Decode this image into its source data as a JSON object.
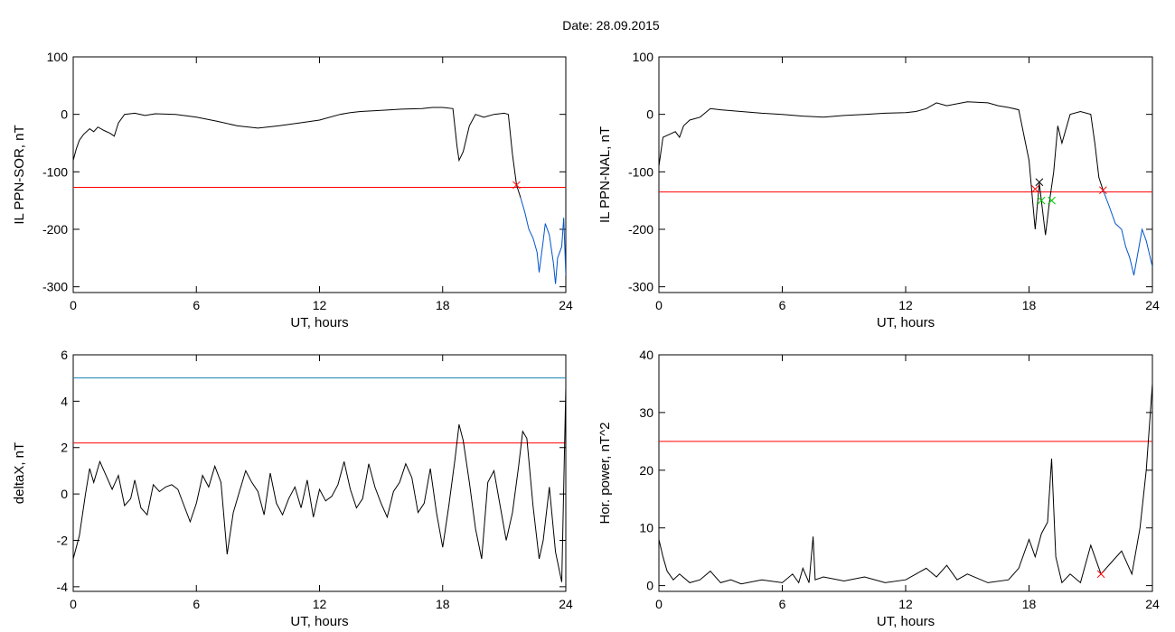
{
  "figure": {
    "title": "Date:  28.09.2015"
  },
  "chart_data": [
    {
      "id": "sor",
      "type": "line",
      "xlabel": "UT, hours",
      "ylabel": "IL PPN-SOR, nT",
      "xlim": [
        0,
        24
      ],
      "ylim": [
        -310,
        100
      ],
      "xticks": [
        0,
        6,
        12,
        18,
        24
      ],
      "yticks": [
        100,
        0,
        -100,
        -200,
        -300
      ],
      "threshold": {
        "value": -127,
        "color": "#ff0000"
      },
      "markers": [
        {
          "x": 21.6,
          "y": -123,
          "symbol": "x",
          "color": "#ff0000"
        }
      ],
      "series": [
        {
          "color": "#000000",
          "points": [
            [
              0,
              -80
            ],
            [
              0.15,
              -60
            ],
            [
              0.3,
              -45
            ],
            [
              0.5,
              -35
            ],
            [
              0.8,
              -25
            ],
            [
              1.0,
              -30
            ],
            [
              1.2,
              -22
            ],
            [
              1.5,
              -28
            ],
            [
              1.8,
              -33
            ],
            [
              2.0,
              -38
            ],
            [
              2.2,
              -15
            ],
            [
              2.5,
              0
            ],
            [
              3,
              2
            ],
            [
              3.5,
              -2
            ],
            [
              4,
              1
            ],
            [
              5,
              0
            ],
            [
              6,
              -5
            ],
            [
              7,
              -12
            ],
            [
              8,
              -20
            ],
            [
              9,
              -24
            ],
            [
              10,
              -20
            ],
            [
              11,
              -15
            ],
            [
              12,
              -10
            ],
            [
              13,
              0
            ],
            [
              13.5,
              3
            ],
            [
              14,
              5
            ],
            [
              15,
              7
            ],
            [
              16,
              9
            ],
            [
              17,
              10
            ],
            [
              17.5,
              12
            ],
            [
              18,
              12
            ],
            [
              18.5,
              10
            ],
            [
              18.7,
              -55
            ],
            [
              18.8,
              -80
            ],
            [
              19,
              -65
            ],
            [
              19.3,
              -20
            ],
            [
              19.6,
              0
            ],
            [
              20,
              -5
            ],
            [
              20.5,
              0
            ],
            [
              21,
              2
            ],
            [
              21.2,
              0
            ],
            [
              21.4,
              -70
            ],
            [
              21.6,
              -123
            ],
            [
              21.8,
              -145
            ]
          ]
        },
        {
          "color": "#0055cc",
          "points": [
            [
              21.8,
              -145
            ],
            [
              22.0,
              -170
            ],
            [
              22.2,
              -200
            ],
            [
              22.4,
              -215
            ],
            [
              22.6,
              -240
            ],
            [
              22.7,
              -275
            ],
            [
              22.9,
              -220
            ],
            [
              23.0,
              -190
            ],
            [
              23.2,
              -210
            ],
            [
              23.4,
              -260
            ],
            [
              23.5,
              -295
            ],
            [
              23.6,
              -250
            ],
            [
              23.8,
              -230
            ],
            [
              23.9,
              -180
            ],
            [
              24,
              -280
            ]
          ]
        }
      ]
    },
    {
      "id": "nal",
      "type": "line",
      "xlabel": "UT, hours",
      "ylabel": "IL PPN-NAL, nT",
      "xlim": [
        0,
        24
      ],
      "ylim": [
        -310,
        100
      ],
      "xticks": [
        0,
        6,
        12,
        18,
        24
      ],
      "yticks": [
        100,
        0,
        -100,
        -200,
        -300
      ],
      "threshold": {
        "value": -135,
        "color": "#ff0000"
      },
      "markers": [
        {
          "x": 18.3,
          "y": -130,
          "symbol": "x",
          "color": "#ff0000"
        },
        {
          "x": 18.5,
          "y": -118,
          "symbol": "x",
          "color": "#000000"
        },
        {
          "x": 18.6,
          "y": -150,
          "symbol": "x",
          "color": "#00cc00"
        },
        {
          "x": 19.1,
          "y": -150,
          "symbol": "x",
          "color": "#00cc00"
        },
        {
          "x": 21.6,
          "y": -132,
          "symbol": "x",
          "color": "#ff0000"
        }
      ],
      "series": [
        {
          "color": "#000000",
          "points": [
            [
              0,
              -90
            ],
            [
              0.2,
              -40
            ],
            [
              0.5,
              -35
            ],
            [
              0.8,
              -30
            ],
            [
              1,
              -40
            ],
            [
              1.2,
              -20
            ],
            [
              1.5,
              -10
            ],
            [
              2,
              -5
            ],
            [
              2.5,
              10
            ],
            [
              3,
              8
            ],
            [
              4,
              5
            ],
            [
              5,
              2
            ],
            [
              6,
              0
            ],
            [
              7,
              -3
            ],
            [
              8,
              -5
            ],
            [
              9,
              -2
            ],
            [
              10,
              0
            ],
            [
              11,
              2
            ],
            [
              12,
              3
            ],
            [
              12.5,
              5
            ],
            [
              13,
              10
            ],
            [
              13.5,
              20
            ],
            [
              14,
              15
            ],
            [
              15,
              22
            ],
            [
              16,
              20
            ],
            [
              16.5,
              15
            ],
            [
              17,
              12
            ],
            [
              17.5,
              8
            ],
            [
              18.0,
              -80
            ],
            [
              18.2,
              -160
            ],
            [
              18.3,
              -200
            ],
            [
              18.5,
              -120
            ],
            [
              18.8,
              -210
            ],
            [
              19,
              -150
            ],
            [
              19.2,
              -100
            ],
            [
              19.4,
              -20
            ],
            [
              19.6,
              -50
            ],
            [
              20,
              0
            ],
            [
              20.5,
              5
            ],
            [
              21,
              0
            ],
            [
              21.2,
              -50
            ],
            [
              21.4,
              -110
            ],
            [
              21.6,
              -132
            ]
          ]
        },
        {
          "color": "#0055cc",
          "points": [
            [
              21.6,
              -132
            ],
            [
              21.9,
              -160
            ],
            [
              22.2,
              -190
            ],
            [
              22.5,
              -200
            ],
            [
              22.7,
              -230
            ],
            [
              22.9,
              -250
            ],
            [
              23.1,
              -280
            ],
            [
              23.3,
              -240
            ],
            [
              23.5,
              -200
            ],
            [
              23.7,
              -220
            ],
            [
              23.9,
              -250
            ],
            [
              24,
              -265
            ]
          ]
        }
      ]
    },
    {
      "id": "deltax",
      "type": "line",
      "xlabel": "UT, hours",
      "ylabel": "deltaX, nT",
      "xlim": [
        0,
        24
      ],
      "ylim": [
        -4.2,
        6
      ],
      "xticks": [
        0,
        6,
        12,
        18,
        24
      ],
      "yticks": [
        6,
        4,
        2,
        0,
        -2,
        -4
      ],
      "thresholds": [
        {
          "value": 5,
          "color": "#1a80b3"
        },
        {
          "value": 2.2,
          "color": "#ff0000"
        }
      ],
      "series": [
        {
          "color": "#000000",
          "points": [
            [
              0,
              -2.8
            ],
            [
              0.3,
              -1.8
            ],
            [
              0.6,
              0
            ],
            [
              0.8,
              1.1
            ],
            [
              1.0,
              0.5
            ],
            [
              1.3,
              1.4
            ],
            [
              1.6,
              0.8
            ],
            [
              1.9,
              0.2
            ],
            [
              2.2,
              0.8
            ],
            [
              2.5,
              -0.5
            ],
            [
              2.8,
              -0.2
            ],
            [
              3.0,
              0.6
            ],
            [
              3.3,
              -0.6
            ],
            [
              3.6,
              -0.9
            ],
            [
              3.9,
              0.4
            ],
            [
              4.2,
              0.1
            ],
            [
              4.5,
              0.3
            ],
            [
              4.8,
              0.4
            ],
            [
              5.1,
              0.2
            ],
            [
              5.4,
              -0.5
            ],
            [
              5.7,
              -1.2
            ],
            [
              6.0,
              -0.4
            ],
            [
              6.3,
              0.8
            ],
            [
              6.6,
              0.3
            ],
            [
              6.9,
              1.2
            ],
            [
              7.2,
              0.5
            ],
            [
              7.5,
              -2.6
            ],
            [
              7.8,
              -0.8
            ],
            [
              8.1,
              0.1
            ],
            [
              8.4,
              1.0
            ],
            [
              8.7,
              0.5
            ],
            [
              9.0,
              0.1
            ],
            [
              9.3,
              -0.9
            ],
            [
              9.6,
              0.9
            ],
            [
              9.9,
              -0.4
            ],
            [
              10.2,
              -0.9
            ],
            [
              10.5,
              -0.2
            ],
            [
              10.8,
              0.3
            ],
            [
              11.1,
              -0.6
            ],
            [
              11.4,
              0.6
            ],
            [
              11.7,
              -1.0
            ],
            [
              12.0,
              0.2
            ],
            [
              12.3,
              -0.3
            ],
            [
              12.6,
              -0.1
            ],
            [
              12.9,
              0.4
            ],
            [
              13.2,
              1.4
            ],
            [
              13.5,
              0.2
            ],
            [
              13.8,
              -0.6
            ],
            [
              14.1,
              -0.2
            ],
            [
              14.4,
              1.3
            ],
            [
              14.7,
              0.3
            ],
            [
              15.0,
              -0.4
            ],
            [
              15.3,
              -1.0
            ],
            [
              15.6,
              0.1
            ],
            [
              15.9,
              0.5
            ],
            [
              16.2,
              1.3
            ],
            [
              16.5,
              0.7
            ],
            [
              16.8,
              -0.8
            ],
            [
              17.1,
              -0.4
            ],
            [
              17.4,
              1.1
            ],
            [
              17.7,
              -0.8
            ],
            [
              18.0,
              -2.3
            ],
            [
              18.3,
              -0.5
            ],
            [
              18.6,
              1.5
            ],
            [
              18.8,
              3.0
            ],
            [
              19.0,
              2.3
            ],
            [
              19.3,
              0.5
            ],
            [
              19.6,
              -1.5
            ],
            [
              19.9,
              -2.8
            ],
            [
              20.2,
              0.5
            ],
            [
              20.5,
              1.0
            ],
            [
              20.8,
              -0.5
            ],
            [
              21.1,
              -2.0
            ],
            [
              21.4,
              -0.8
            ],
            [
              21.7,
              1.2
            ],
            [
              21.9,
              2.7
            ],
            [
              22.1,
              2.4
            ],
            [
              22.4,
              -0.5
            ],
            [
              22.7,
              -2.8
            ],
            [
              22.9,
              -2.0
            ],
            [
              23.2,
              0.3
            ],
            [
              23.5,
              -2.5
            ],
            [
              23.8,
              -3.8
            ],
            [
              24.0,
              4.6
            ]
          ]
        }
      ]
    },
    {
      "id": "hpower",
      "type": "line",
      "xlabel": "UT, hours",
      "ylabel": "Hor. power, nT^2",
      "xlim": [
        0,
        24
      ],
      "ylim": [
        -1,
        40
      ],
      "xticks": [
        0,
        6,
        12,
        18,
        24
      ],
      "yticks": [
        40,
        30,
        20,
        10,
        0
      ],
      "threshold": {
        "value": 25,
        "color": "#ff0000"
      },
      "markers": [
        {
          "x": 21.5,
          "y": 2,
          "symbol": "x",
          "color": "#ff0000"
        }
      ],
      "series": [
        {
          "color": "#000000",
          "points": [
            [
              0,
              8
            ],
            [
              0.2,
              5
            ],
            [
              0.4,
              2.5
            ],
            [
              0.7,
              1
            ],
            [
              1.0,
              2
            ],
            [
              1.5,
              0.5
            ],
            [
              2,
              1
            ],
            [
              2.5,
              2.5
            ],
            [
              3,
              0.5
            ],
            [
              3.5,
              1
            ],
            [
              4,
              0.3
            ],
            [
              5,
              1
            ],
            [
              6,
              0.5
            ],
            [
              6.5,
              2
            ],
            [
              6.8,
              0.5
            ],
            [
              7.0,
              3
            ],
            [
              7.3,
              0.5
            ],
            [
              7.5,
              8.5
            ],
            [
              7.6,
              1
            ],
            [
              8,
              1.5
            ],
            [
              9,
              0.8
            ],
            [
              10,
              1.5
            ],
            [
              11,
              0.5
            ],
            [
              12,
              1
            ],
            [
              12.5,
              2
            ],
            [
              13,
              3
            ],
            [
              13.5,
              1.5
            ],
            [
              14,
              3.5
            ],
            [
              14.5,
              1
            ],
            [
              15,
              2
            ],
            [
              16,
              0.5
            ],
            [
              17,
              1
            ],
            [
              17.5,
              3
            ],
            [
              18,
              8
            ],
            [
              18.3,
              5
            ],
            [
              18.6,
              9
            ],
            [
              18.9,
              11
            ],
            [
              19.1,
              22
            ],
            [
              19.3,
              5
            ],
            [
              19.6,
              0.5
            ],
            [
              20,
              2
            ],
            [
              20.5,
              0.5
            ],
            [
              21,
              7
            ],
            [
              21.5,
              2
            ],
            [
              22,
              4
            ],
            [
              22.5,
              6
            ],
            [
              23,
              2
            ],
            [
              23.4,
              10
            ],
            [
              23.7,
              20
            ],
            [
              24,
              35
            ]
          ]
        }
      ]
    }
  ]
}
